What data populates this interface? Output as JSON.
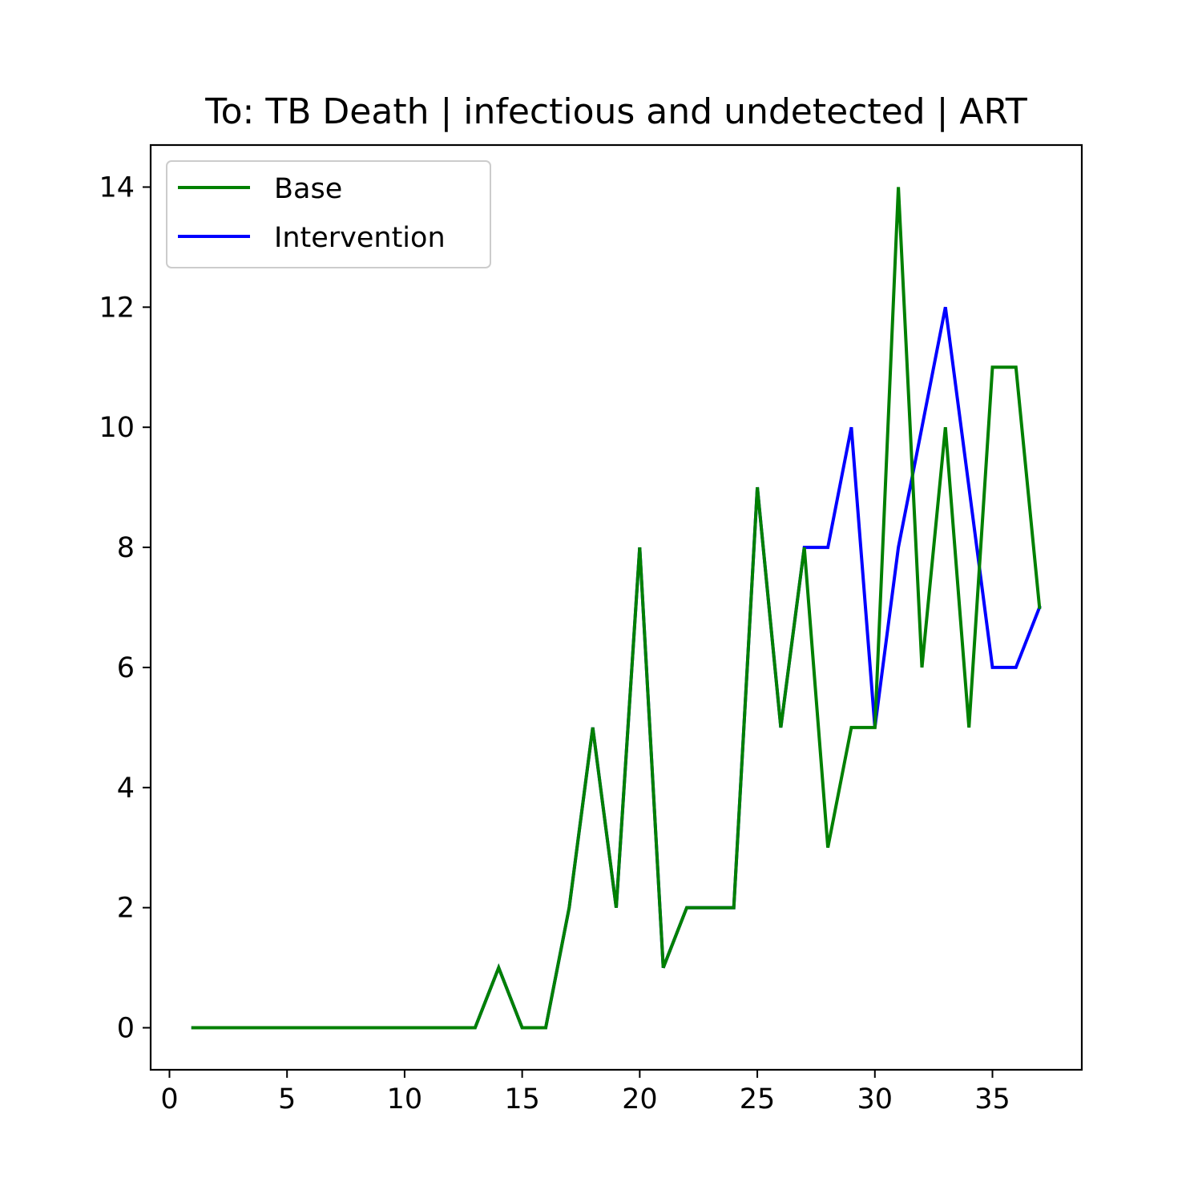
{
  "chart_data": {
    "type": "line",
    "title": "To: TB Death | infectious and undetected | ART",
    "xlabel": "",
    "ylabel": "",
    "xlim": [
      -0.8,
      38.8
    ],
    "ylim": [
      -0.7,
      14.7
    ],
    "xticks": [
      0,
      5,
      10,
      15,
      20,
      25,
      30,
      35
    ],
    "yticks": [
      0,
      2,
      4,
      6,
      8,
      10,
      12,
      14
    ],
    "grid": false,
    "legend_position": "top-left",
    "x": [
      1,
      2,
      3,
      4,
      5,
      6,
      7,
      8,
      9,
      10,
      11,
      12,
      13,
      14,
      15,
      16,
      17,
      18,
      19,
      20,
      21,
      22,
      23,
      24,
      25,
      26,
      27,
      28,
      29,
      30,
      31,
      32,
      33,
      34,
      35,
      36,
      37
    ],
    "series": [
      {
        "name": "Base",
        "color": "#008000",
        "values": [
          0,
          0,
          0,
          0,
          0,
          0,
          0,
          0,
          0,
          0,
          0,
          0,
          0,
          1,
          0,
          0,
          2,
          5,
          2,
          8,
          1,
          2,
          2,
          2,
          9,
          5,
          8,
          3,
          5,
          5,
          14,
          6,
          10,
          5,
          11,
          11,
          7
        ]
      },
      {
        "name": "Intervention",
        "color": "#0000ff",
        "values": [
          0,
          0,
          0,
          0,
          0,
          0,
          0,
          0,
          0,
          0,
          0,
          0,
          0,
          1,
          0,
          0,
          2,
          5,
          2,
          8,
          1,
          2,
          2,
          2,
          9,
          5,
          8,
          8,
          10,
          5,
          8,
          10,
          12,
          9,
          6,
          6,
          7
        ]
      }
    ]
  }
}
